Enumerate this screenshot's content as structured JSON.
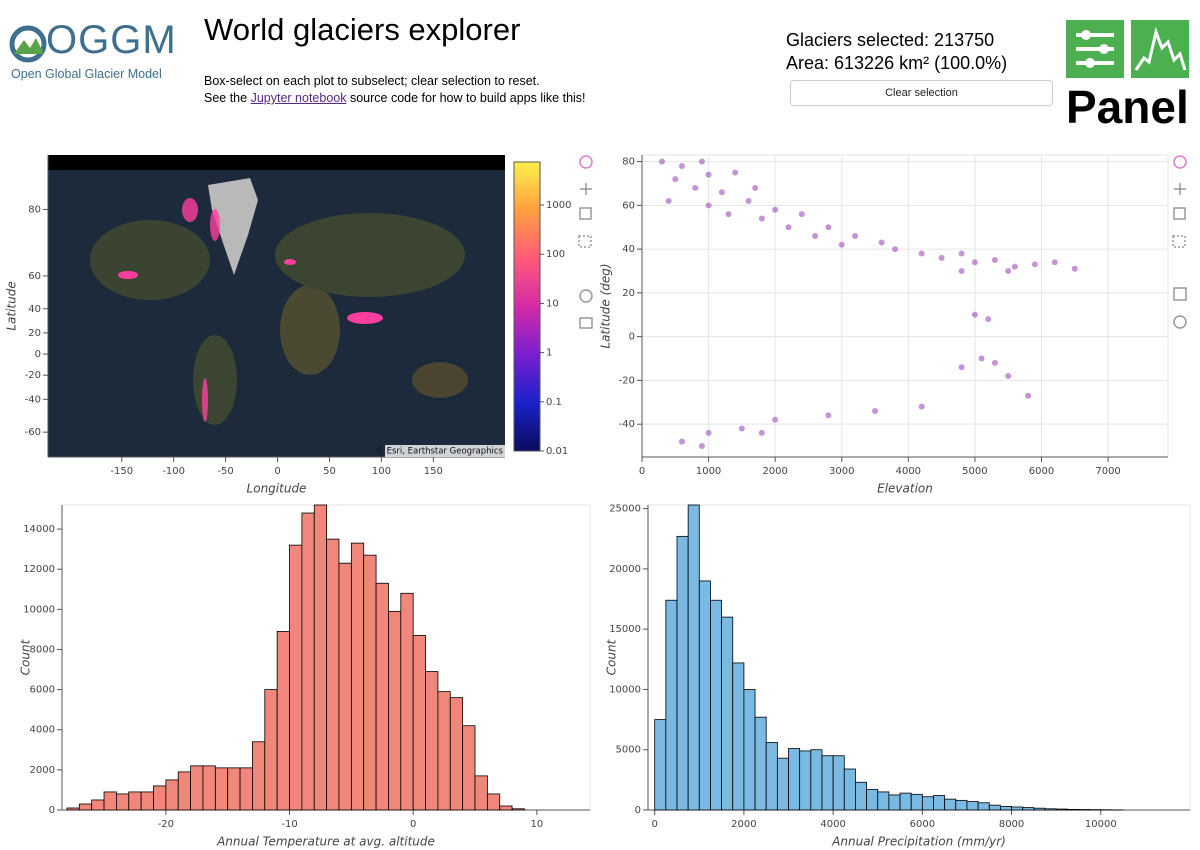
{
  "header": {
    "logo_text": "OGGM",
    "logo_subtitle": "Open Global Glacier Model",
    "title": "World glaciers explorer",
    "instructions": "Box-select on each plot to subselect; clear selection to reset.",
    "source_prefix": "See the",
    "source_link": "Jupyter notebook",
    "source_suffix": "source code for how to build apps like this!",
    "selected_label": "Glaciers selected: 213750",
    "area_label": "Area: 613226 km² (100.0%)",
    "clear_button": "Clear selection",
    "panel_logo": "Panel"
  },
  "chart_data": [
    {
      "type": "map",
      "xlabel": "Longitude",
      "ylabel": "Latitude",
      "xlim": [
        -221,
        219
      ],
      "ylim": [
        -70,
        86
      ],
      "yscale": "mercator",
      "xticks": [
        -150,
        -100,
        -50,
        0,
        50,
        100,
        150
      ],
      "yticks": [
        -60,
        -40,
        -20,
        0,
        20,
        40,
        60,
        80
      ],
      "grid": false,
      "colorbar": {
        "scale": "log",
        "lim": [
          0.01,
          7500
        ],
        "ticks": [
          0.01,
          0.1,
          1,
          10,
          100,
          1000
        ],
        "colormap": [
          "#0b0b5e",
          "#1a22c8",
          "#7a1fd0",
          "#d42aa8",
          "#ff5a78",
          "#ffa040",
          "#fff04a"
        ]
      },
      "attribution": "© Esri, Earthstar Geographics"
    },
    {
      "type": "scatter",
      "xlabel": "Elevation",
      "ylabel": "Latitude (deg)",
      "xlim": [
        0,
        7900
      ],
      "ylim": [
        -55,
        83
      ],
      "xticks": [
        0,
        1000,
        2000,
        3000,
        4000,
        5000,
        6000,
        7000
      ],
      "yticks": [
        -40,
        -20,
        0,
        20,
        40,
        60,
        80
      ],
      "grid": true,
      "color": "#9b4fb8",
      "x": [
        300,
        600,
        900,
        500,
        1000,
        1400,
        800,
        1200,
        1700,
        400,
        1000,
        1600,
        2000,
        1300,
        1800,
        2400,
        2200,
        2800,
        2600,
        3200,
        3000,
        3600,
        3800,
        4200,
        4500,
        4800,
        5000,
        5300,
        5600,
        5900,
        6200,
        5500,
        4800,
        6500,
        5000,
        5200,
        5100,
        5300,
        4800,
        5500,
        4200,
        3500,
        2800,
        2000,
        1500,
        1000,
        1800,
        600,
        900,
        5800
      ],
      "y": [
        80,
        78,
        80,
        72,
        74,
        75,
        68,
        66,
        68,
        62,
        60,
        62,
        58,
        56,
        54,
        56,
        50,
        50,
        46,
        46,
        42,
        43,
        40,
        38,
        36,
        38,
        34,
        35,
        32,
        33,
        34,
        30,
        30,
        31,
        10,
        8,
        -10,
        -12,
        -14,
        -18,
        -32,
        -34,
        -36,
        -38,
        -42,
        -44,
        -44,
        -48,
        -50,
        -27
      ]
    },
    {
      "type": "histogram",
      "xlabel": "Annual Temperature at avg. altitude",
      "ylabel": "Count",
      "xlim": [
        -28.4,
        14.3
      ],
      "ylim": [
        0,
        15200
      ],
      "xticks": [
        -20,
        -10,
        0,
        10
      ],
      "yticks": [
        0,
        2000,
        4000,
        6000,
        8000,
        10000,
        12000,
        14000
      ],
      "grid": false,
      "color": "#f1877a",
      "bins": [
        -28,
        -27,
        -26,
        -25,
        -24,
        -23,
        -22,
        -21,
        -20,
        -19,
        -18,
        -17,
        -16,
        -15,
        -14,
        -13,
        -12,
        -11,
        -10,
        -9,
        -8,
        -7,
        -6,
        -5,
        -4,
        -3,
        -2,
        -1,
        0,
        1,
        2,
        3,
        4,
        5,
        6,
        7,
        8,
        9
      ],
      "counts": [
        100,
        300,
        500,
        900,
        800,
        900,
        900,
        1200,
        1500,
        1900,
        2200,
        2200,
        2100,
        2100,
        2100,
        3400,
        6000,
        8900,
        13200,
        14800,
        15200,
        13500,
        12300,
        13300,
        12700,
        11300,
        9900,
        10800,
        8700,
        6900,
        5900,
        5600,
        4200,
        1700,
        800,
        200,
        60
      ]
    },
    {
      "type": "histogram",
      "xlabel": "Annual Precipitation (mm/yr)",
      "ylabel": "Count",
      "xlim": [
        -150,
        12000
      ],
      "ylim": [
        0,
        25300
      ],
      "xticks": [
        0,
        2000,
        4000,
        6000,
        8000,
        10000
      ],
      "yticks": [
        0,
        5000,
        10000,
        15000,
        20000,
        25000
      ],
      "grid": false,
      "color": "#79b9e2",
      "bins": [
        0,
        250,
        500,
        750,
        1000,
        1250,
        1500,
        1750,
        2000,
        2250,
        2500,
        2750,
        3000,
        3250,
        3500,
        3750,
        4000,
        4250,
        4500,
        4750,
        5000,
        5250,
        5500,
        5750,
        6000,
        6250,
        6500,
        6750,
        7000,
        7250,
        7500,
        7750,
        8000,
        8250,
        8500,
        8750,
        9000,
        9250,
        9500,
        9750,
        10000,
        10250,
        10500
      ],
      "counts": [
        7500,
        17400,
        22700,
        25300,
        19000,
        17400,
        16000,
        12200,
        10000,
        7700,
        5600,
        4300,
        5100,
        4900,
        5000,
        4500,
        4500,
        3400,
        2300,
        1700,
        1500,
        1250,
        1400,
        1300,
        1100,
        1200,
        900,
        800,
        700,
        600,
        400,
        300,
        250,
        200,
        150,
        100,
        80,
        50,
        40,
        30,
        20,
        10
      ]
    }
  ]
}
